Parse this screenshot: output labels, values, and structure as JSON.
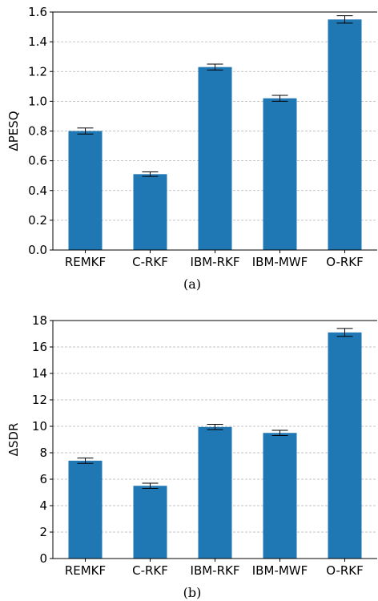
{
  "chart_data": [
    {
      "type": "bar",
      "caption": "(a)",
      "ylabel": "ΔPESQ",
      "categories": [
        "REMKF",
        "C-RKF",
        "IBM-RKF",
        "IBM-MWF",
        "O-RKF"
      ],
      "values": [
        0.8,
        0.51,
        1.23,
        1.02,
        1.55
      ],
      "errors": [
        0.02,
        0.015,
        0.02,
        0.02,
        0.025
      ],
      "ylim": [
        0,
        1.6
      ],
      "yticks": [
        "0.0",
        "0.2",
        "0.4",
        "0.6",
        "0.8",
        "1.0",
        "1.2",
        "1.4",
        "1.6"
      ],
      "grid": true,
      "bar_color": "#1f77b4"
    },
    {
      "type": "bar",
      "caption": "(b)",
      "ylabel": "ΔSDR",
      "categories": [
        "REMKF",
        "C-RKF",
        "IBM-RKF",
        "IBM-MWF",
        "O-RKF"
      ],
      "values": [
        7.4,
        5.5,
        9.95,
        9.5,
        17.1
      ],
      "errors": [
        0.2,
        0.2,
        0.2,
        0.2,
        0.3
      ],
      "ylim": [
        0,
        18
      ],
      "yticks": [
        "0",
        "2",
        "4",
        "6",
        "8",
        "10",
        "12",
        "14",
        "16",
        "18"
      ],
      "grid": true,
      "bar_color": "#1f77b4"
    }
  ]
}
